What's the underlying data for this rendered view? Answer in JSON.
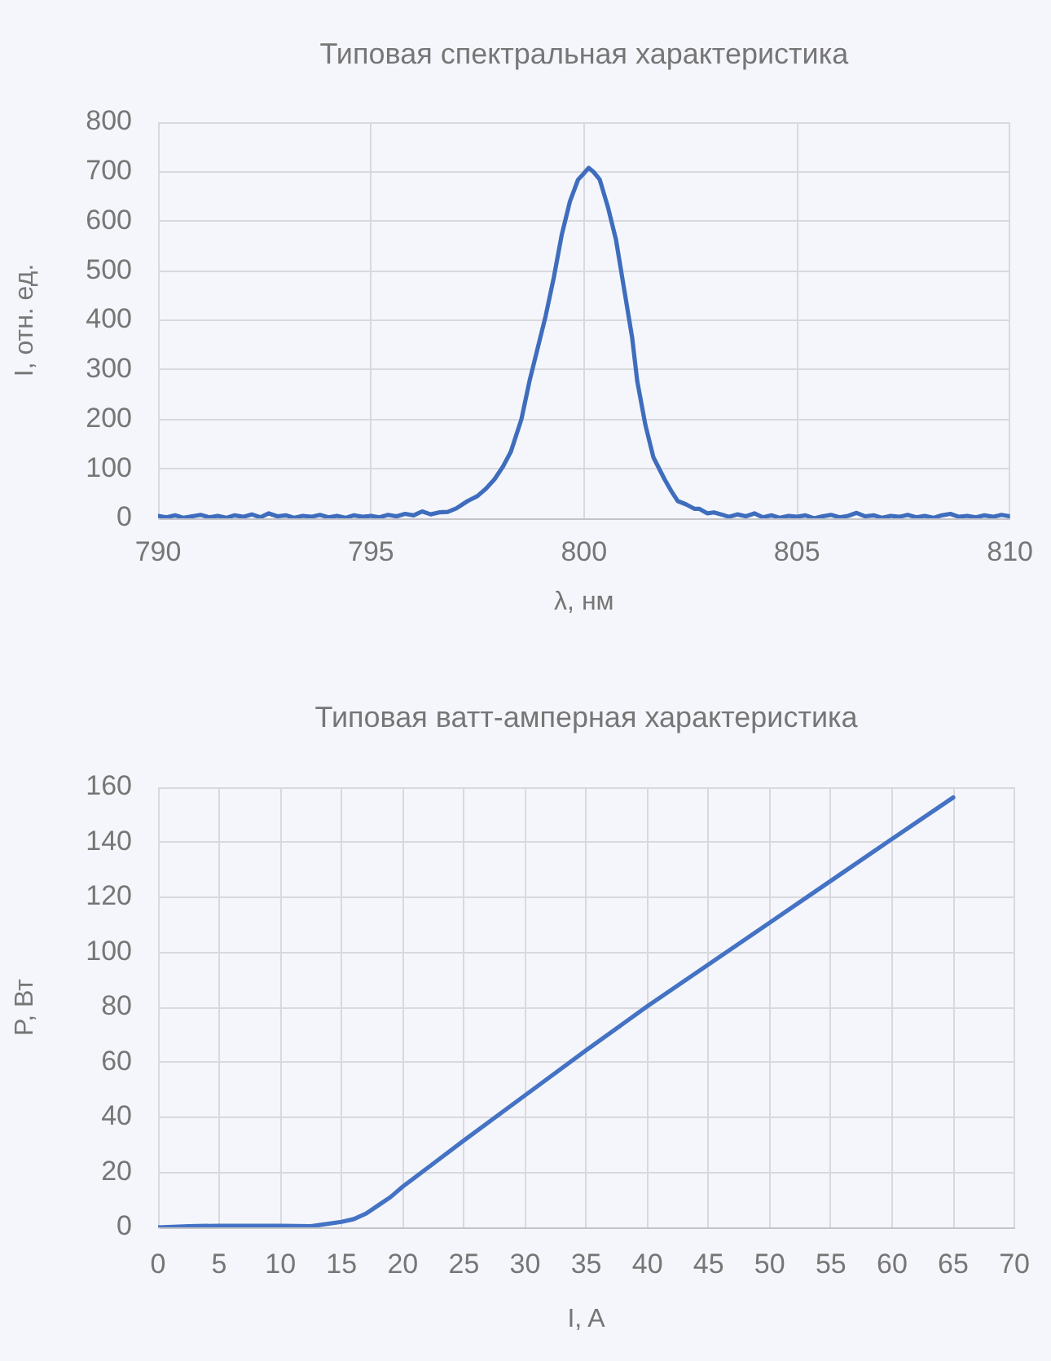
{
  "chart_data": [
    {
      "type": "line",
      "title": "Типовая спектральная характеристика",
      "xlabel": "λ, нм",
      "ylabel": "I, отн. ед.",
      "x": [
        790.0,
        790.2,
        790.4,
        790.6,
        790.8,
        791.0,
        791.2,
        791.4,
        791.6,
        791.8,
        792.0,
        792.2,
        792.4,
        792.6,
        792.8,
        793.0,
        793.2,
        793.4,
        793.6,
        793.8,
        794.0,
        794.2,
        794.4,
        794.6,
        794.8,
        795.0,
        795.2,
        795.4,
        795.6,
        795.8,
        796.0,
        796.2,
        796.4,
        796.6,
        796.8,
        797.0,
        797.27,
        797.5,
        797.7,
        797.9,
        798.1,
        798.28,
        798.53,
        798.72,
        798.91,
        799.1,
        799.29,
        799.48,
        799.67,
        799.86,
        799.98,
        800.11,
        800.22,
        800.37,
        800.56,
        800.75,
        800.94,
        801.13,
        801.25,
        801.44,
        801.63,
        801.89,
        802.05,
        802.2,
        802.4,
        802.6,
        802.71,
        802.9,
        803.05,
        803.22,
        803.4,
        803.6,
        803.8,
        804.0,
        804.2,
        804.4,
        804.6,
        804.8,
        805.0,
        805.2,
        805.4,
        805.6,
        805.8,
        806.0,
        806.2,
        806.4,
        806.6,
        806.8,
        807.0,
        807.2,
        807.4,
        807.6,
        807.8,
        808.0,
        808.2,
        808.4,
        808.6,
        808.8,
        809.0,
        809.2,
        809.4,
        809.6,
        809.8,
        810.0
      ],
      "series": [
        {
          "color": "#3f6dbd",
          "values": [
            5,
            2,
            6,
            1,
            4,
            7,
            2,
            5,
            1,
            6,
            3,
            8,
            2,
            10,
            4,
            6,
            1,
            5,
            3,
            7,
            2,
            5,
            1,
            6,
            3,
            5,
            2,
            7,
            4,
            9,
            6,
            14,
            8,
            12,
            13,
            20,
            35,
            45,
            60,
            79,
            105,
            134,
            200,
            277,
            343,
            409,
            486,
            574,
            640,
            684,
            695,
            708,
            700,
            684,
            629,
            563,
            464,
            365,
            277,
            189,
            123,
            79,
            55,
            35,
            28,
            19,
            19,
            10,
            12,
            8,
            3,
            8,
            4,
            10,
            2,
            6,
            1,
            5,
            3,
            6,
            0,
            4,
            7,
            2,
            5,
            11,
            4,
            6,
            1,
            5,
            3,
            7,
            2,
            5,
            1,
            6,
            9,
            3,
            5,
            2,
            6,
            3,
            7,
            4
          ]
        }
      ],
      "xlim": [
        790,
        810
      ],
      "xticks": [
        790,
        795,
        800,
        805,
        810
      ],
      "ylim": [
        0,
        800
      ],
      "yticks": [
        0,
        100,
        200,
        300,
        400,
        500,
        600,
        700,
        800
      ],
      "grid": true
    },
    {
      "type": "line",
      "title": "Типовая ватт-амперная характеристика",
      "xlabel": "I, A",
      "ylabel": "P, Вт",
      "x": [
        0,
        2.5,
        5,
        7.5,
        10,
        12.5,
        15,
        16,
        17,
        18,
        19,
        20,
        22.5,
        25,
        30,
        35,
        40,
        45,
        50,
        55,
        60,
        65
      ],
      "series": [
        {
          "color": "#4472c4",
          "values": [
            0,
            0.4,
            0.6,
            0.6,
            0.6,
            0.4,
            2,
            3,
            5,
            8,
            11,
            14.8,
            23.2,
            31.6,
            48,
            64.4,
            80.4,
            95.6,
            110.8,
            126,
            141.2,
            156.3
          ]
        }
      ],
      "xlim": [
        0,
        70
      ],
      "xticks": [
        0,
        5,
        10,
        15,
        20,
        25,
        30,
        35,
        40,
        45,
        50,
        55,
        60,
        65,
        70
      ],
      "ylim": [
        0,
        160
      ],
      "yticks": [
        0,
        20,
        40,
        60,
        80,
        100,
        120,
        140,
        160
      ],
      "grid": true
    }
  ]
}
